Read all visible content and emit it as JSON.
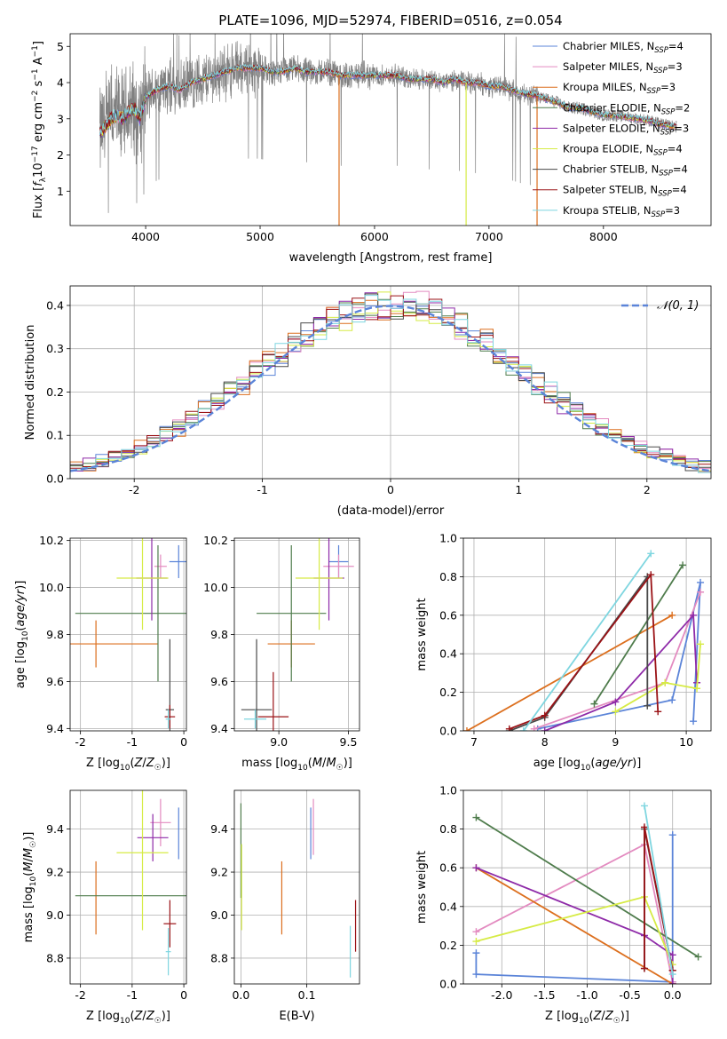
{
  "colors": {
    "Chabrier MILES": "#5b84d8",
    "Salpeter MILES": "#e38bc0",
    "Kroupa MILES": "#dc6f1e",
    "Chabrier ELODIE": "#4f7c4c",
    "Salpeter ELODIE": "#8e2aa8",
    "Kroupa ELODIE": "#d6eb45",
    "Chabrier STELIB": "#4a4a4a",
    "Salpeter STELIB": "#9a1216",
    "Kroupa STELIB": "#7fd6e0",
    "data": "#808080",
    "normal": "#5b84d8"
  },
  "chart_data": [
    {
      "id": "spectrum",
      "type": "line",
      "title": "PLATE=1096, MJD=52974, FIBERID=0516, z=0.054",
      "xlabel": "wavelength [Angstrom, rest frame]",
      "ylabel": "Flux [fλ10⁻¹⁷ erg cm⁻² s⁻¹ A⁻¹]",
      "xlim": [
        3340,
        8940
      ],
      "ylim": [
        0.05,
        5.35
      ],
      "xticks": [
        "4000",
        "5000",
        "6000",
        "7000",
        "8000"
      ],
      "yticks": [
        "1",
        "2",
        "3",
        "4",
        "5"
      ],
      "grid": false,
      "legend_position": "upper-right",
      "legend": [
        {
          "base": "Chabrier MILES, N",
          "sub": "SSP",
          "tail": "=4"
        },
        {
          "base": "Salpeter MILES, N",
          "sub": "SSP",
          "tail": "=3"
        },
        {
          "base": "Kroupa MILES, N",
          "sub": "SSP",
          "tail": "=3"
        },
        {
          "base": "Chabrier ELODIE, N",
          "sub": "SSP",
          "tail": "=2"
        },
        {
          "base": "Salpeter ELODIE, N",
          "sub": "SSP",
          "tail": "=3"
        },
        {
          "base": "Kroupa ELODIE, N",
          "sub": "SSP",
          "tail": "=4"
        },
        {
          "base": "Chabrier STELIB, N",
          "sub": "SSP",
          "tail": "=4"
        },
        {
          "base": "Salpeter STELIB, N",
          "sub": "SSP",
          "tail": "=4"
        },
        {
          "base": "Kroupa STELIB, N",
          "sub": "SSP",
          "tail": "=3"
        }
      ],
      "continuum": {
        "x": [
          3600,
          3650,
          3700,
          3750,
          3800,
          3850,
          3900,
          3950,
          4000,
          4100,
          4200,
          4300,
          4400,
          4500,
          4600,
          4700,
          4800,
          4900,
          5000,
          5100,
          5200,
          5300,
          5400,
          5500,
          5600,
          5700,
          5800,
          5900,
          6000,
          6100,
          6200,
          6300,
          6400,
          6500,
          6600,
          6700,
          6800,
          6900,
          7000,
          7100,
          7200,
          7300,
          7400,
          7500,
          7600,
          7700,
          7800,
          7900,
          8000,
          8100,
          8200,
          8300,
          8400,
          8500,
          8600,
          8700
        ],
        "y": [
          2.6,
          2.8,
          3.0,
          3.1,
          3.0,
          3.2,
          3.3,
          3.0,
          3.6,
          3.8,
          3.9,
          3.8,
          4.0,
          4.1,
          4.2,
          4.3,
          4.4,
          4.4,
          4.4,
          4.3,
          4.3,
          4.4,
          4.3,
          4.3,
          4.3,
          4.2,
          4.2,
          4.2,
          4.2,
          4.2,
          4.2,
          4.1,
          4.1,
          4.1,
          4.0,
          4.1,
          4.0,
          4.0,
          3.9,
          3.9,
          3.8,
          3.7,
          3.65,
          3.55,
          3.45,
          3.3,
          3.3,
          3.2,
          3.1,
          3.1,
          3.05,
          3.0,
          2.95,
          2.85,
          2.8,
          2.75
        ]
      },
      "model_absorption_lines": [
        {
          "model": "Kroupa MILES",
          "x": 5690
        },
        {
          "model": "Kroupa ELODIE",
          "x": 6800
        },
        {
          "model": "Kroupa MILES",
          "x": 7420
        }
      ]
    },
    {
      "id": "residuals",
      "type": "histogram",
      "xlabel": "(data-model)/error",
      "ylabel": "Normed distribution",
      "xlim": [
        -2.5,
        2.5
      ],
      "ylim": [
        0,
        0.445
      ],
      "xticks": [
        -2,
        -1,
        0,
        1,
        2
      ],
      "yticks": [
        0.0,
        0.1,
        0.2,
        0.3,
        0.4
      ],
      "grid": true,
      "legend_position": "upper-right",
      "legend_label": "𝒩(0, 1)",
      "bin_edges_start": -2.5,
      "bin_width": 0.1
    },
    {
      "id": "age-vs-Z",
      "type": "errorbar",
      "xlabel": "Z [log10(Z/Z☉)]",
      "ylabel": "age  [log10(age/yr)]",
      "xlim": [
        -2.2,
        0.05
      ],
      "ylim": [
        9.39,
        10.21
      ],
      "xticks": [
        -2,
        -1,
        0
      ],
      "yticks": [
        9.4,
        9.6,
        9.8,
        10.0,
        10.2
      ],
      "grid": true,
      "points": [
        {
          "model": "Chabrier MILES",
          "x": -0.1,
          "xerr": 0.18,
          "y": 10.11,
          "yerr": 0.07
        },
        {
          "model": "Salpeter MILES",
          "x": -0.45,
          "xerr": 0.12,
          "y": 10.09,
          "yerr": 0.05
        },
        {
          "model": "Kroupa MILES",
          "x": -1.7,
          "xerr": 1.2,
          "y": 9.76,
          "yerr": 0.1
        },
        {
          "model": "Chabrier ELODIE",
          "x": -0.5,
          "xerr": 1.6,
          "y": 9.89,
          "yerr": 0.29
        },
        {
          "model": "Salpeter ELODIE",
          "x": -0.62,
          "xerr": 0.3,
          "y": 10.04,
          "yerr": 0.18
        },
        {
          "model": "Kroupa ELODIE",
          "x": -0.8,
          "xerr": 0.5,
          "y": 10.04,
          "yerr": 0.22
        },
        {
          "model": "Chabrier STELIB",
          "x": -0.27,
          "xerr": 0.08,
          "y": 9.48,
          "yerr": 0.3
        },
        {
          "model": "Salpeter STELIB",
          "x": -0.27,
          "xerr": 0.1,
          "y": 9.45,
          "yerr": 0.05
        },
        {
          "model": "Kroupa STELIB",
          "x": -0.3,
          "xerr": 0.05,
          "y": 9.44,
          "yerr": 0.04
        }
      ]
    },
    {
      "id": "age-vs-mass",
      "type": "errorbar",
      "xlabel": "mass [log10(M/M☉)]",
      "ylabel": "",
      "xlim": [
        8.68,
        9.58
      ],
      "ylim": [
        9.39,
        10.21
      ],
      "xticks": [
        9.0,
        9.5
      ],
      "yticks": [
        9.4,
        9.6,
        9.8,
        10.0,
        10.2
      ],
      "grid": true,
      "points": [
        {
          "model": "Chabrier MILES",
          "x": 9.43,
          "xerr": 0.07,
          "y": 10.11,
          "yerr": 0.07
        },
        {
          "model": "Salpeter MILES",
          "x": 9.43,
          "xerr": 0.11,
          "y": 10.09,
          "yerr": 0.05
        },
        {
          "model": "Kroupa MILES",
          "x": 9.09,
          "xerr": 0.17,
          "y": 9.76,
          "yerr": 0.1
        },
        {
          "model": "Chabrier ELODIE",
          "x": 9.09,
          "xerr": 0.25,
          "y": 9.89,
          "yerr": 0.29
        },
        {
          "model": "Salpeter ELODIE",
          "x": 9.36,
          "xerr": 0.11,
          "y": 10.04,
          "yerr": 0.18
        },
        {
          "model": "Kroupa ELODIE",
          "x": 9.29,
          "xerr": 0.17,
          "y": 10.04,
          "yerr": 0.22
        },
        {
          "model": "Chabrier STELIB",
          "x": 8.84,
          "xerr": 0.11,
          "y": 9.48,
          "yerr": 0.3
        },
        {
          "model": "Salpeter STELIB",
          "x": 8.96,
          "xerr": 0.11,
          "y": 9.45,
          "yerr": 0.19
        },
        {
          "model": "Kroupa STELIB",
          "x": 8.83,
          "xerr": 0.08,
          "y": 9.44,
          "yerr": 0.04
        }
      ]
    },
    {
      "id": "weight-vs-age",
      "type": "line",
      "xlabel": "age  [log10(age/yr)]",
      "ylabel": "mass weight",
      "xlim": [
        6.85,
        10.35
      ],
      "ylim": [
        0,
        1.0
      ],
      "xticks": [
        7,
        8,
        9,
        10
      ],
      "yticks": [
        0.0,
        0.2,
        0.4,
        0.6,
        0.8,
        1.0
      ],
      "grid": true,
      "series": [
        {
          "model": "Chabrier MILES",
          "x": [
            7.9,
            9.8,
            10.2,
            10.1
          ],
          "y": [
            0.01,
            0.16,
            0.77,
            0.05
          ]
        },
        {
          "model": "Salpeter MILES",
          "x": [
            7.85,
            9.7,
            10.2
          ],
          "y": [
            0.01,
            0.25,
            0.72
          ]
        },
        {
          "model": "Kroupa MILES",
          "x": [
            6.9,
            9.8
          ],
          "y": [
            0.0,
            0.6
          ]
        },
        {
          "model": "Chabrier ELODIE",
          "x": [
            8.7,
            9.95
          ],
          "y": [
            0.14,
            0.86
          ]
        },
        {
          "model": "Salpeter ELODIE",
          "x": [
            8.0,
            9.0,
            10.1,
            10.15
          ],
          "y": [
            0.0,
            0.15,
            0.6,
            0.25
          ]
        },
        {
          "model": "Kroupa ELODIE",
          "x": [
            9.0,
            9.7,
            10.15,
            10.2
          ],
          "y": [
            0.1,
            0.25,
            0.22,
            0.45
          ]
        },
        {
          "model": "Chabrier STELIB",
          "x": [
            7.5,
            8.0,
            9.45,
            9.45
          ],
          "y": [
            0.0,
            0.07,
            0.8,
            0.13
          ]
        },
        {
          "model": "Salpeter STELIB",
          "x": [
            7.5,
            8.0,
            9.5,
            9.6
          ],
          "y": [
            0.01,
            0.08,
            0.81,
            0.1
          ]
        },
        {
          "model": "Kroupa STELIB",
          "x": [
            7.7,
            9.5
          ],
          "y": [
            0.0,
            0.92
          ]
        }
      ]
    },
    {
      "id": "mass-vs-Z",
      "type": "errorbar",
      "xlabel": "Z [log10(Z/Z☉)]",
      "ylabel": "mass [log10(M/M☉)]",
      "xlim": [
        -2.2,
        0.05
      ],
      "ylim": [
        8.68,
        9.58
      ],
      "xticks": [
        -2,
        -1,
        0
      ],
      "yticks": [
        8.8,
        9.0,
        9.2,
        9.4
      ],
      "grid": true,
      "points": [
        {
          "model": "Chabrier MILES",
          "x": -0.1,
          "xerr": 0.0,
          "y": 9.38,
          "yerr": 0.12
        },
        {
          "model": "Salpeter MILES",
          "x": -0.45,
          "xerr": 0.2,
          "y": 9.43,
          "yerr": 0.11
        },
        {
          "model": "Kroupa MILES",
          "x": -1.7,
          "xerr": 0.0,
          "y": 9.08,
          "yerr": 0.17
        },
        {
          "model": "Chabrier ELODIE",
          "x": -0.5,
          "xerr": 1.6,
          "y": 9.09,
          "yerr": 0.0
        },
        {
          "model": "Salpeter ELODIE",
          "x": -0.6,
          "xerr": 0.3,
          "y": 9.36,
          "yerr": 0.11
        },
        {
          "model": "Kroupa ELODIE",
          "x": -0.8,
          "xerr": 0.5,
          "y": 9.29,
          "yerr": 0.36
        },
        {
          "model": "Chabrier STELIB",
          "x": -0.27,
          "xerr": 0.0,
          "y": 8.84,
          "yerr": 0.0
        },
        {
          "model": "Salpeter STELIB",
          "x": -0.27,
          "xerr": 0.12,
          "y": 8.96,
          "yerr": 0.11
        },
        {
          "model": "Kroupa STELIB",
          "x": -0.3,
          "xerr": 0.05,
          "y": 8.83,
          "yerr": 0.11
        }
      ]
    },
    {
      "id": "mass-vs-ebv",
      "type": "errorbar",
      "xlabel": "E(B-V)",
      "ylabel": "",
      "xlim": [
        -0.01,
        0.18
      ],
      "ylim": [
        8.68,
        9.58
      ],
      "xticks": [
        "0.0",
        "0.1"
      ],
      "yticks": [
        8.8,
        9.0,
        9.2,
        9.4
      ],
      "grid": true,
      "points": [
        {
          "model": "Chabrier MILES",
          "x": 0.106,
          "xerr": 0.0,
          "y": 9.38,
          "yerr": 0.12
        },
        {
          "model": "Salpeter MILES",
          "x": 0.11,
          "xerr": 0.0,
          "y": 9.41,
          "yerr": 0.13
        },
        {
          "model": "Kroupa MILES",
          "x": 0.062,
          "xerr": 0.0,
          "y": 9.08,
          "yerr": 0.17
        },
        {
          "model": "Chabrier ELODIE",
          "x": 0.0,
          "xerr": 0.0,
          "y": 9.3,
          "yerr": 0.22
        },
        {
          "model": "Kroupa ELODIE",
          "x": 0.001,
          "xerr": 0.0,
          "y": 9.13,
          "yerr": 0.2
        },
        {
          "model": "Salpeter STELIB",
          "x": 0.174,
          "xerr": 0.0,
          "y": 8.95,
          "yerr": 0.12
        },
        {
          "model": "Kroupa STELIB",
          "x": 0.166,
          "xerr": 0.0,
          "y": 8.83,
          "yerr": 0.12
        }
      ]
    },
    {
      "id": "weight-vs-Z",
      "type": "line",
      "xlabel": "Z [log10(Z/Z☉)]",
      "ylabel": "mass weight",
      "xlim": [
        -2.45,
        0.45
      ],
      "ylim": [
        0,
        1.0
      ],
      "xticks": [
        -2.0,
        -1.5,
        -1.0,
        -0.5,
        0.0
      ],
      "yticks": [
        0.0,
        0.2,
        0.4,
        0.6,
        0.8,
        1.0
      ],
      "grid": true,
      "series": [
        {
          "model": "Chabrier MILES",
          "x": [
            -2.3,
            -2.3,
            0.0,
            0.0
          ],
          "y": [
            0.16,
            0.05,
            0.01,
            0.77
          ]
        },
        {
          "model": "Salpeter MILES",
          "x": [
            -2.3,
            -0.33,
            0.0
          ],
          "y": [
            0.27,
            0.72,
            0.01
          ]
        },
        {
          "model": "Kroupa MILES",
          "x": [
            -2.3,
            0.0
          ],
          "y": [
            0.6,
            0.0
          ]
        },
        {
          "model": "Chabrier ELODIE",
          "x": [
            -2.3,
            0.3
          ],
          "y": [
            0.86,
            0.14
          ]
        },
        {
          "model": "Salpeter ELODIE",
          "x": [
            -2.3,
            -0.33,
            0.0,
            0.0
          ],
          "y": [
            0.6,
            0.25,
            0.15,
            0.0
          ]
        },
        {
          "model": "Kroupa ELODIE",
          "x": [
            -2.3,
            -0.33,
            0.0
          ],
          "y": [
            0.22,
            0.45,
            0.1
          ]
        },
        {
          "model": "Chabrier STELIB",
          "x": [
            -0.33,
            -0.33,
            0.0
          ],
          "y": [
            0.08,
            0.8,
            0.07
          ]
        },
        {
          "model": "Salpeter STELIB",
          "x": [
            -0.33,
            -0.33,
            0.0
          ],
          "y": [
            0.08,
            0.81,
            0.07
          ]
        },
        {
          "model": "Kroupa STELIB",
          "x": [
            -0.33,
            0.0
          ],
          "y": [
            0.92,
            0.05
          ]
        }
      ]
    }
  ]
}
